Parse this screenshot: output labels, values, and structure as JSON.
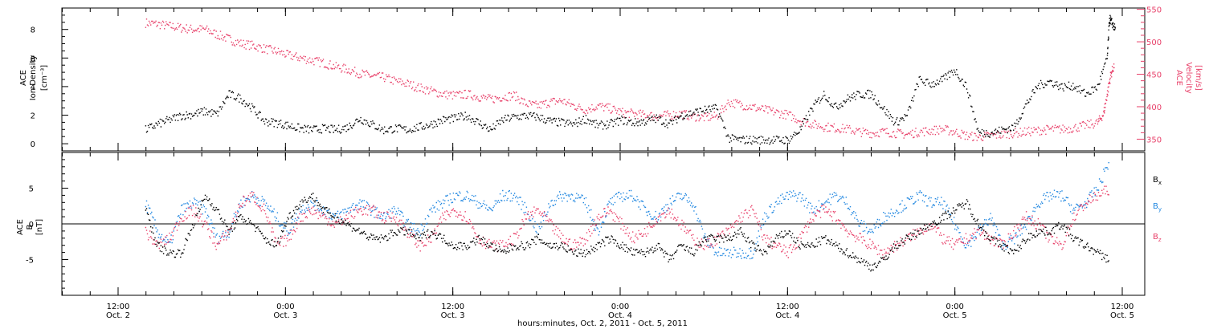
{
  "chart_data": [
    {
      "type": "scatter",
      "panel": "top",
      "left_axis": {
        "label_line1": "ACE",
        "label_line2": "Ion Density",
        "unit_label": "[cm⁻³]",
        "ylim": [
          -0.5,
          9.5
        ],
        "ticks": [
          "0",
          "2",
          "4",
          "6",
          "8"
        ],
        "tick_values": [
          0,
          2,
          4,
          6,
          8
        ]
      },
      "right_axis": {
        "label_line1": "ACE",
        "label_line2": "Velocity",
        "unit_label": "[km/s]",
        "ylim": [
          332,
          552
        ],
        "ticks": [
          "350",
          "400",
          "450",
          "500",
          "550"
        ],
        "tick_values": [
          350,
          400,
          450,
          500,
          550
        ]
      },
      "series": [
        {
          "color": "#000000",
          "axis": "left",
          "x": [
            0,
            1,
            2,
            3,
            4,
            5,
            6,
            7,
            8,
            9,
            10,
            11,
            12,
            13,
            14,
            15,
            16,
            17,
            18,
            19,
            20,
            21,
            22,
            23,
            24,
            25,
            26,
            27,
            28,
            29,
            30,
            31,
            32,
            33,
            34,
            35,
            36,
            37,
            38,
            39,
            40,
            41,
            42,
            43,
            44,
            45,
            46,
            47,
            48,
            49,
            50,
            51,
            52,
            53,
            54,
            55,
            56,
            57,
            58,
            59,
            60,
            61,
            62,
            63,
            64,
            65,
            66,
            67,
            68,
            69,
            70,
            71,
            72,
            73,
            74,
            75,
            76,
            77,
            78,
            79,
            80
          ],
          "values": [
            1.0,
            1.4,
            1.7,
            2.0,
            2.1,
            2.3,
            2.1,
            3.5,
            3.2,
            2.5,
            1.6,
            1.5,
            1.3,
            1.1,
            1.0,
            1.1,
            1.0,
            1.2,
            1.8,
            1.4,
            1.0,
            1.1,
            1.0,
            1.2,
            1.4,
            1.7,
            1.8,
            2.0,
            1.5,
            1.0,
            1.7,
            1.9,
            2.0,
            1.9,
            1.6,
            1.5,
            1.4,
            1.8,
            1.3,
            1.4,
            1.7,
            1.5,
            1.6,
            1.8,
            1.4,
            2.0,
            2.2,
            2.4,
            2.5,
            0.4,
            0.3,
            0.3,
            0.3,
            0.3,
            0.3,
            1.0,
            2.5,
            3.5,
            2.6,
            3.2,
            3.5,
            3.5,
            2.5,
            1.5,
            2.0,
            4.5,
            4.2,
            4.5,
            5.2,
            4.0,
            0.8,
            0.8,
            1.0,
            1.2,
            2.8,
            4.1,
            4.4,
            4.0,
            4.1,
            3.5,
            4.0
          ],
          "x_extra": [
            80.8,
            81.0,
            81.2,
            81.5
          ],
          "values_extra": [
            6.0,
            8.8,
            8.5,
            8.0
          ]
        },
        {
          "color": "#e8416a",
          "axis": "right",
          "x": [
            0,
            1,
            2,
            3,
            4,
            5,
            6,
            7,
            8,
            9,
            10,
            11,
            12,
            13,
            14,
            15,
            16,
            17,
            18,
            19,
            20,
            21,
            22,
            23,
            24,
            25,
            26,
            27,
            28,
            29,
            30,
            31,
            32,
            33,
            34,
            35,
            36,
            37,
            38,
            39,
            40,
            41,
            42,
            43,
            44,
            45,
            46,
            47,
            48,
            49,
            50,
            51,
            52,
            53,
            54,
            55,
            56,
            57,
            58,
            59,
            60,
            61,
            62,
            63,
            64,
            65,
            66,
            67,
            68,
            69,
            70,
            71,
            72,
            73,
            74,
            75,
            76,
            77,
            78,
            79,
            80
          ],
          "values": [
            530,
            528,
            525,
            522,
            520,
            520,
            512,
            505,
            498,
            495,
            490,
            486,
            480,
            476,
            472,
            468,
            462,
            458,
            452,
            448,
            446,
            440,
            436,
            430,
            425,
            420,
            418,
            420,
            416,
            412,
            416,
            418,
            405,
            402,
            408,
            410,
            402,
            396,
            402,
            398,
            392,
            390,
            388,
            386,
            388,
            390,
            386,
            384,
            386,
            408,
            404,
            400,
            396,
            392,
            388,
            380,
            374,
            370,
            368,
            366,
            362,
            360,
            362,
            360,
            358,
            362,
            364,
            366,
            362,
            356,
            354,
            356,
            358,
            360,
            362,
            364,
            366,
            366,
            368,
            372,
            376
          ],
          "x_extra": [
            80.5,
            80.8,
            81.1,
            81.4
          ],
          "values_extra": [
            390,
            420,
            450,
            465
          ]
        }
      ]
    },
    {
      "type": "scatter",
      "panel": "bottom",
      "left_axis": {
        "label_line1": "ACE",
        "label_line2": "B",
        "unit_label": "[nT]",
        "ylim": [
          -10,
          10
        ],
        "ticks": [
          "-5",
          "0",
          "5"
        ],
        "tick_values": [
          -5,
          0,
          5
        ]
      },
      "legend": [
        {
          "label": "B",
          "sub": "x",
          "color": "#000000"
        },
        {
          "label": "B",
          "sub": "y",
          "color": "#1f86e0"
        },
        {
          "label": "B",
          "sub": "z",
          "color": "#e8416a"
        }
      ],
      "series": [
        {
          "color": "#000000",
          "x": [
            0,
            1,
            2,
            3,
            4,
            5,
            6,
            7,
            8,
            9,
            10,
            11,
            12,
            13,
            14,
            15,
            16,
            17,
            18,
            19,
            20,
            21,
            22,
            23,
            24,
            25,
            26,
            27,
            28,
            29,
            30,
            31,
            32,
            33,
            34,
            35,
            36,
            37,
            38,
            39,
            40,
            41,
            42,
            43,
            44,
            45,
            46,
            47,
            48,
            49,
            50,
            51,
            52,
            53,
            54,
            55,
            56,
            57,
            58,
            59,
            60,
            61,
            62,
            63,
            64,
            65,
            66,
            67,
            68,
            69,
            70,
            71,
            72,
            73,
            74,
            75,
            76,
            77,
            78,
            79,
            80,
            81
          ],
          "values": [
            2,
            -3,
            -4,
            -4,
            0,
            4,
            2,
            -1,
            1,
            0,
            -2,
            -3,
            1,
            3,
            4,
            2,
            1,
            0,
            -1,
            -2,
            -2,
            -1,
            -1,
            -2,
            -1,
            -2,
            -3,
            -3,
            -2,
            -3,
            -4,
            -3,
            -3,
            -2,
            -3,
            -3,
            -4,
            -4,
            -3,
            -2,
            -3,
            -4,
            -4,
            -3,
            -5,
            -3,
            -4,
            -2,
            -2,
            -2,
            -1,
            -3,
            -4,
            -2,
            -1,
            -3,
            -3,
            -2,
            -3,
            -4,
            -5,
            -6,
            -5,
            -3,
            -2,
            -1,
            0,
            1,
            2,
            3,
            0,
            -2,
            -3,
            -4,
            -2,
            -1,
            -1,
            0,
            -2,
            -3,
            -4,
            -5
          ]
        },
        {
          "color": "#1f86e0",
          "x": [
            0,
            1,
            2,
            3,
            4,
            5,
            6,
            7,
            8,
            9,
            10,
            11,
            12,
            13,
            14,
            15,
            16,
            17,
            18,
            19,
            20,
            21,
            22,
            23,
            24,
            25,
            26,
            27,
            28,
            29,
            30,
            31,
            32,
            33,
            34,
            35,
            36,
            37,
            38,
            39,
            40,
            41,
            42,
            43,
            44,
            45,
            46,
            47,
            48,
            49,
            50,
            51,
            52,
            53,
            54,
            55,
            56,
            57,
            58,
            59,
            60,
            61,
            62,
            63,
            64,
            65,
            66,
            67,
            68,
            69,
            70,
            71,
            72,
            73,
            74,
            75,
            76,
            77,
            78,
            79,
            80,
            81
          ],
          "values": [
            3,
            -1,
            -3,
            2,
            3,
            2,
            -2,
            -1,
            3,
            4,
            3,
            1,
            -1,
            2,
            3,
            2,
            1,
            2,
            3,
            2,
            1,
            2,
            0,
            -1,
            2,
            3,
            4,
            4,
            3,
            2,
            4,
            4,
            2,
            -1,
            3,
            4,
            4,
            3,
            -1,
            3,
            4,
            4,
            2,
            1,
            3,
            4,
            3,
            -2,
            -4,
            -4,
            -4,
            -4,
            1,
            3,
            4,
            4,
            2,
            3,
            4,
            3,
            0,
            -1,
            1,
            2,
            3,
            4,
            3,
            3,
            0,
            -3,
            -1,
            1,
            -3,
            -2,
            0,
            3,
            4,
            4,
            2,
            3,
            5,
            9
          ]
        },
        {
          "color": "#e8416a",
          "x": [
            0,
            1,
            2,
            3,
            4,
            5,
            6,
            7,
            8,
            9,
            10,
            11,
            12,
            13,
            14,
            15,
            16,
            17,
            18,
            19,
            20,
            21,
            22,
            23,
            24,
            25,
            26,
            27,
            28,
            29,
            30,
            31,
            32,
            33,
            34,
            35,
            36,
            37,
            38,
            39,
            40,
            41,
            42,
            43,
            44,
            45,
            46,
            47,
            48,
            49,
            50,
            51,
            52,
            53,
            54,
            55,
            56,
            57,
            58,
            59,
            60,
            61,
            62,
            63,
            64,
            65,
            66,
            67,
            68,
            69,
            70,
            71,
            72,
            73,
            74,
            75,
            76,
            77,
            78,
            79,
            80,
            81
          ],
          "values": [
            -1,
            -3,
            -2,
            1,
            2,
            0,
            -3,
            -1,
            3,
            4,
            2,
            -3,
            -2,
            1,
            2,
            1,
            0,
            1,
            2,
            2,
            1,
            1,
            -1,
            -3,
            -2,
            1,
            2,
            1,
            -2,
            -3,
            -3,
            -2,
            1,
            2,
            0,
            -2,
            -3,
            -2,
            1,
            2,
            0,
            -2,
            -1,
            1,
            2,
            0,
            -2,
            -3,
            -2,
            -1,
            1,
            2,
            -2,
            -3,
            -4,
            -2,
            1,
            2,
            1,
            -1,
            -2,
            -3,
            -4,
            -3,
            -2,
            -1,
            0,
            -2,
            -3,
            -2,
            -1,
            -2,
            -3,
            -1,
            1,
            0,
            -2,
            -3,
            1,
            3,
            4,
            5
          ]
        }
      ]
    }
  ],
  "x_axis": {
    "ticks": [
      {
        "time": "12:00",
        "date": "Oct. 2"
      },
      {
        "time": "0:00",
        "date": "Oct. 3"
      },
      {
        "time": "12:00",
        "date": "Oct. 3"
      },
      {
        "time": "0:00",
        "date": "Oct. 4"
      },
      {
        "time": "12:00",
        "date": "Oct. 4"
      },
      {
        "time": "0:00",
        "date": "Oct. 5"
      },
      {
        "time": "12:00",
        "date": "Oct. 5"
      }
    ],
    "label": "hours:minutes, Oct.  2, 2011 - Oct.  5, 2011"
  }
}
